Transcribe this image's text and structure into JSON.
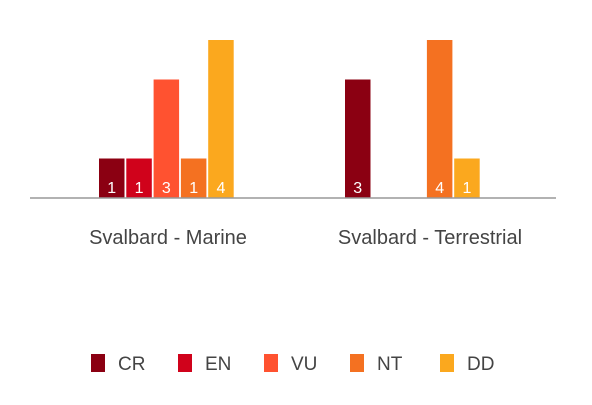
{
  "chart_data": {
    "type": "bar",
    "categories": [
      "Svalbard - Marine",
      "Svalbard - Terrestrial"
    ],
    "series": [
      {
        "name": "CR",
        "color": "#8B0012",
        "values": [
          1,
          3
        ]
      },
      {
        "name": "EN",
        "color": "#D0021B",
        "values": [
          1,
          0
        ]
      },
      {
        "name": "VU",
        "color": "#FF5230",
        "values": [
          3,
          0
        ]
      },
      {
        "name": "NT",
        "color": "#F47121",
        "values": [
          1,
          4
        ]
      },
      {
        "name": "DD",
        "color": "#FBA81E",
        "values": [
          4,
          1
        ]
      }
    ],
    "ylim": [
      0,
      4
    ],
    "grid": false,
    "legend": "bottom",
    "data_labels": true
  }
}
